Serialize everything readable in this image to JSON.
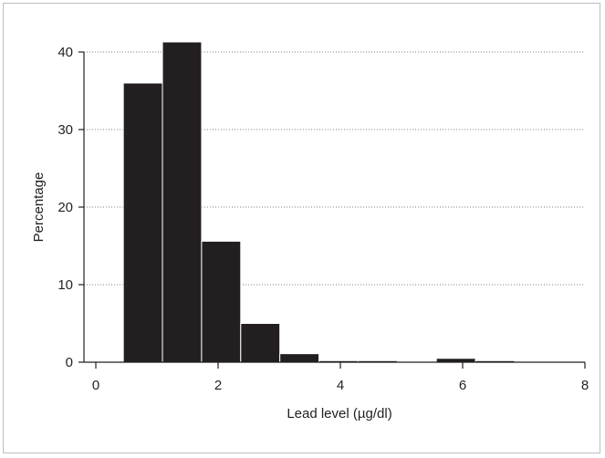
{
  "chart_data": {
    "type": "bar",
    "xlabel": "Lead level (µg/dl)",
    "ylabel": "Percentage",
    "xlim": [
      0,
      8
    ],
    "ylim": [
      0,
      40
    ],
    "x_ticks": [
      "0",
      "2",
      "4",
      "6",
      "8"
    ],
    "y_ticks": [
      "0",
      "10",
      "20",
      "30",
      "40"
    ],
    "grid": "horizontal dotted",
    "bin_width": 0.64,
    "bins": [
      {
        "start": 0.45,
        "end": 1.09,
        "value": 36
      },
      {
        "start": 1.09,
        "end": 1.73,
        "value": 41.3
      },
      {
        "start": 1.73,
        "end": 2.37,
        "value": 15.6
      },
      {
        "start": 2.37,
        "end": 3.01,
        "value": 5
      },
      {
        "start": 3.01,
        "end": 3.65,
        "value": 1.1
      },
      {
        "start": 3.65,
        "end": 4.29,
        "value": 0.2
      },
      {
        "start": 4.29,
        "end": 4.93,
        "value": 0.2
      },
      {
        "start": 4.93,
        "end": 5.57,
        "value": 0
      },
      {
        "start": 5.57,
        "end": 6.21,
        "value": 0.5
      },
      {
        "start": 6.21,
        "end": 6.85,
        "value": 0.2
      }
    ],
    "colors": {
      "bar": "#231f20",
      "bar_edge": "#ffffff",
      "grid": "#7f7f7f",
      "axis": "#231f20"
    }
  }
}
